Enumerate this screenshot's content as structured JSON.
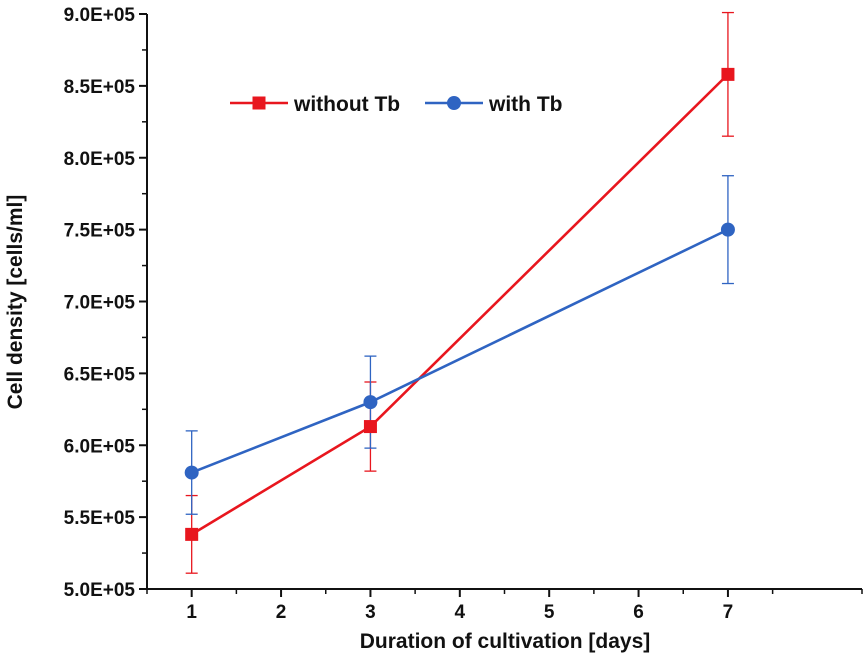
{
  "chart_data": {
    "type": "line",
    "xlabel": "Duration of cultivation [days]",
    "ylabel": "Cell density [cells/ml]",
    "xlim": [
      0.5,
      8.5
    ],
    "ylim": [
      500000,
      900000
    ],
    "x_ticks": [
      1,
      2,
      3,
      4,
      5,
      6,
      7
    ],
    "y_ticks": [
      {
        "value": 500000,
        "label": "5.0E+05"
      },
      {
        "value": 550000,
        "label": "5.5E+05"
      },
      {
        "value": 600000,
        "label": "6.0E+05"
      },
      {
        "value": 650000,
        "label": "6.5E+05"
      },
      {
        "value": 700000,
        "label": "7.0E+05"
      },
      {
        "value": 750000,
        "label": "7.5E+05"
      },
      {
        "value": 800000,
        "label": "8.0E+05"
      },
      {
        "value": 850000,
        "label": "8.5E+05"
      },
      {
        "value": 900000,
        "label": "9.0E+05"
      }
    ],
    "legend_position": "top-left",
    "grid": false,
    "series": [
      {
        "name": "without Tb",
        "color": "#e8161e",
        "marker": "square",
        "x": [
          1,
          3,
          7
        ],
        "y": [
          538000,
          613000,
          858000
        ],
        "error": [
          27000,
          31000,
          43000
        ]
      },
      {
        "name": "with Tb",
        "color": "#2f64c2",
        "marker": "circle",
        "x": [
          1,
          3,
          7
        ],
        "y": [
          581000,
          630000,
          750000
        ],
        "error": [
          29000,
          32000,
          37500
        ]
      }
    ]
  }
}
